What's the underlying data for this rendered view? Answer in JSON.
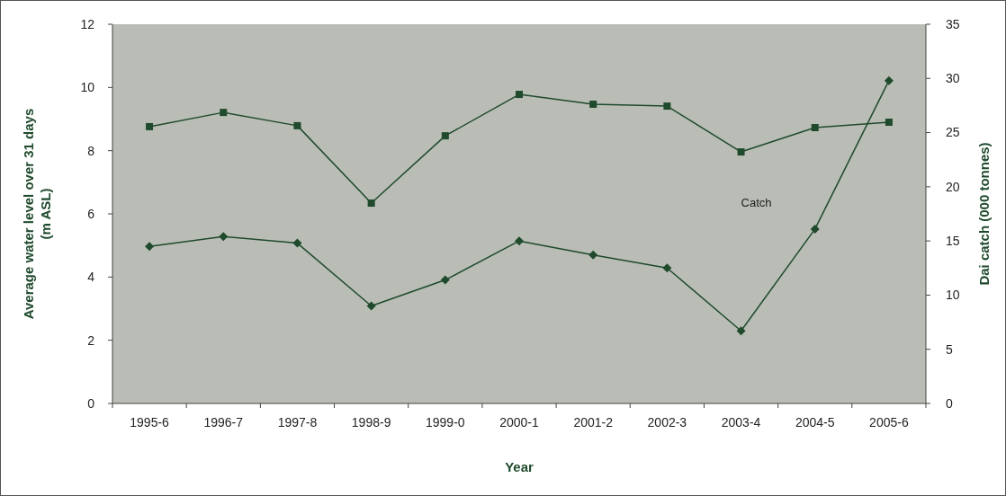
{
  "chart_data": {
    "type": "line",
    "categories": [
      "1995-6",
      "1996-7",
      "1997-8",
      "1998-9",
      "1999-0",
      "2000-1",
      "2001-2",
      "2002-3",
      "2003-4",
      "2004-5",
      "2005-6"
    ],
    "series": [
      {
        "color": "#1f4a2c",
        "marker": "square",
        "values": [
          8.76,
          9.21,
          8.79,
          6.34,
          8.47,
          9.78,
          9.47,
          9.41,
          7.96,
          8.73,
          8.9
        ]
      },
      {
        "name": "Catch",
        "color": "#1f4a2c",
        "marker": "diamond",
        "axis": "y2",
        "values": [
          14.5,
          15.4,
          14.8,
          9.0,
          11.4,
          15.0,
          13.7,
          12.5,
          6.7,
          16.1,
          29.8
        ]
      }
    ],
    "xlabel": "Year",
    "ylabel": "Average water level over 31 days (m ASL)",
    "y2label": "Dai catch (000 tonnes)",
    "ylim": [
      0,
      12
    ],
    "yticks": [
      0,
      2,
      4,
      6,
      8,
      10,
      12
    ],
    "y2lim": [
      0,
      35
    ],
    "y2ticks": [
      0,
      5,
      10,
      15,
      20,
      25,
      30,
      35
    ],
    "grid": false,
    "line_style": "solid"
  }
}
